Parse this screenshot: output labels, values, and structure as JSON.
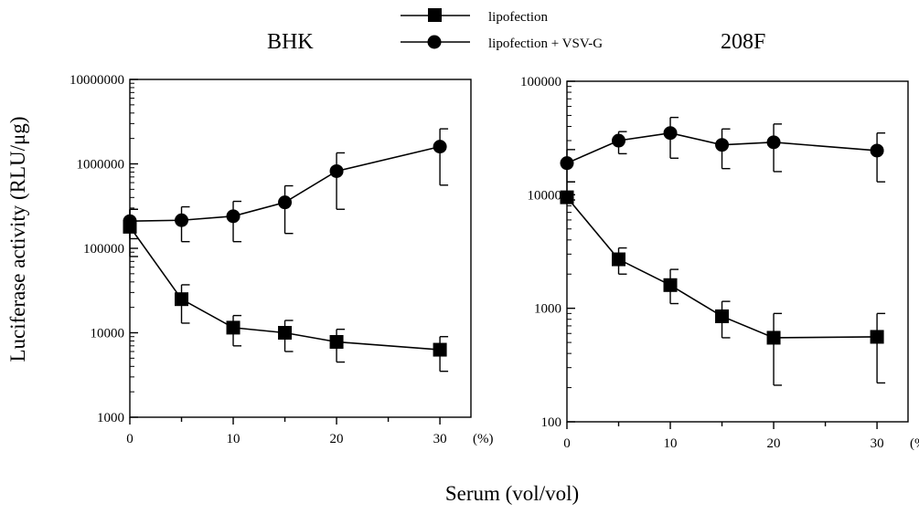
{
  "figure": {
    "ylabel": "Luciferase activity (RLU/μg)",
    "xlabel": "Serum (vol/vol)"
  },
  "legend": [
    {
      "label": "lipofection",
      "marker": "square"
    },
    {
      "label": "lipofection + VSV-G",
      "marker": "circle"
    }
  ],
  "chart_data": [
    {
      "type": "line",
      "title": "BHK",
      "x_unit": "(%)",
      "x": [
        0,
        5,
        10,
        15,
        20,
        30
      ],
      "xticks": [
        0,
        10,
        20,
        30
      ],
      "xlim": [
        0,
        33
      ],
      "yscale": "log",
      "ylim": [
        1000,
        10000000
      ],
      "yticks": [
        1000,
        10000,
        100000,
        1000000,
        10000000
      ],
      "ytick_labels": [
        "1000",
        "10000",
        "100000",
        "1000000",
        "10000000"
      ],
      "grid": false,
      "series": [
        {
          "name": "lipofection",
          "marker": "square",
          "values": [
            180000,
            25000,
            11500,
            10000,
            7800,
            6300
          ],
          "err_lo": [
            80000,
            13000,
            7000,
            6000,
            4500,
            3500
          ],
          "err_hi": [
            290000,
            37000,
            16000,
            14000,
            11000,
            9000
          ]
        },
        {
          "name": "lipofection + VSV-G",
          "marker": "circle",
          "values": [
            210000,
            215000,
            240000,
            350000,
            820000,
            1600000
          ],
          "err_lo": [
            130000,
            120000,
            120000,
            150000,
            290000,
            560000
          ],
          "err_hi": [
            290000,
            310000,
            360000,
            550000,
            1350000,
            2600000
          ]
        }
      ]
    },
    {
      "type": "line",
      "title": "208F",
      "x_unit": "(%)",
      "x": [
        0,
        5,
        10,
        15,
        20,
        30
      ],
      "xticks": [
        0,
        10,
        20,
        30
      ],
      "xlim": [
        0,
        33
      ],
      "yscale": "log",
      "ylim": [
        100,
        100000
      ],
      "yticks": [
        100,
        1000,
        10000,
        100000
      ],
      "ytick_labels": [
        "100",
        "1000",
        "10000",
        "100000"
      ],
      "grid": false,
      "series": [
        {
          "name": "lipofection",
          "marker": "square",
          "values": [
            9500,
            2700,
            1600,
            850,
            550,
            560
          ],
          "err_lo": [
            9000,
            2000,
            1100,
            550,
            210,
            220
          ],
          "err_hi": [
            13000,
            3400,
            2200,
            1150,
            900,
            900
          ]
        },
        {
          "name": "lipofection + VSV-G",
          "marker": "circle",
          "values": [
            19000,
            30000,
            35000,
            27500,
            29000,
            24500
          ],
          "err_lo": [
            13000,
            23000,
            21000,
            17000,
            16000,
            13000
          ],
          "err_hi": [
            25000,
            36000,
            48000,
            38000,
            42000,
            35000
          ]
        }
      ]
    }
  ]
}
